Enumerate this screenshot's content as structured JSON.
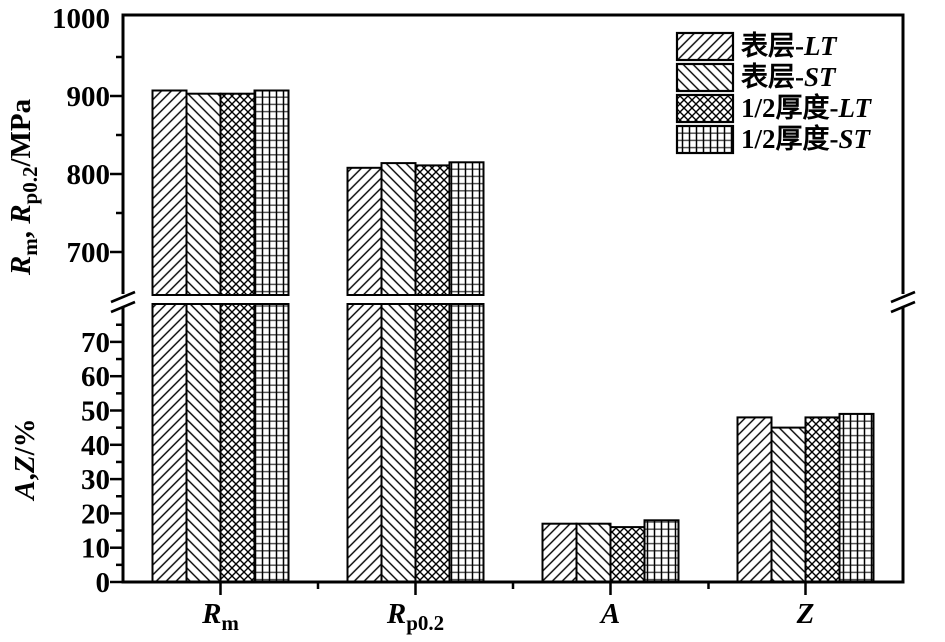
{
  "chart_data": {
    "type": "bar",
    "style": "black-and-white hatched bars, broken y-axis (two stacked panels)",
    "categories": [
      {
        "id": "Rm",
        "main": "R",
        "sub": "m",
        "unit": "MPa"
      },
      {
        "id": "Rp02",
        "main": "R",
        "sub": "p0.2",
        "unit": "MPa"
      },
      {
        "id": "A",
        "main": "A",
        "sub": "",
        "unit": "%"
      },
      {
        "id": "Z",
        "main": "Z",
        "sub": "",
        "unit": "%"
      }
    ],
    "series": [
      {
        "name": "表层-LT",
        "hatch": "diagonal-forward",
        "values": [
          907,
          808,
          17,
          48
        ]
      },
      {
        "name": "表层-ST",
        "hatch": "diagonal-back",
        "values": [
          903,
          814,
          17,
          45
        ]
      },
      {
        "name": "1/2厚度-LT",
        "hatch": "diagonal-cross",
        "values": [
          903,
          811,
          16,
          48
        ]
      },
      {
        "name": "1/2厚度-ST",
        "hatch": "grid",
        "values": [
          907,
          815,
          18,
          49
        ]
      }
    ],
    "top_axis": {
      "label_text": "Rm, Rp0.2/MPa",
      "label_parts": [
        {
          "t": "R",
          "italic": true
        },
        {
          "t": "m",
          "sub": true
        },
        {
          "t": ", "
        },
        {
          "t": "R",
          "italic": true
        },
        {
          "t": "p0.2",
          "sub": true
        },
        {
          "t": "/MPa"
        }
      ],
      "major_ticks": [
        700,
        800,
        900,
        1000
      ],
      "minor_ticks": [
        750,
        850,
        950
      ],
      "range": [
        645,
        1000
      ]
    },
    "bottom_axis": {
      "label_text": "A,Z/%",
      "label_parts": [
        {
          "t": "A",
          "italic": true
        },
        {
          "t": ","
        },
        {
          "t": "Z",
          "italic": true
        },
        {
          "t": "/%"
        }
      ],
      "major_ticks": [
        0,
        10,
        20,
        30,
        40,
        50,
        60,
        70
      ],
      "minor_ticks": [
        5,
        15,
        25,
        35,
        45,
        55,
        65,
        75
      ],
      "range": [
        0,
        79
      ]
    },
    "axis_break": true,
    "legend_position": "top-right-inside",
    "grid": false,
    "colors": {
      "foreground": "#000000",
      "background": "#ffffff",
      "grid_line_gray": "#555555"
    }
  }
}
